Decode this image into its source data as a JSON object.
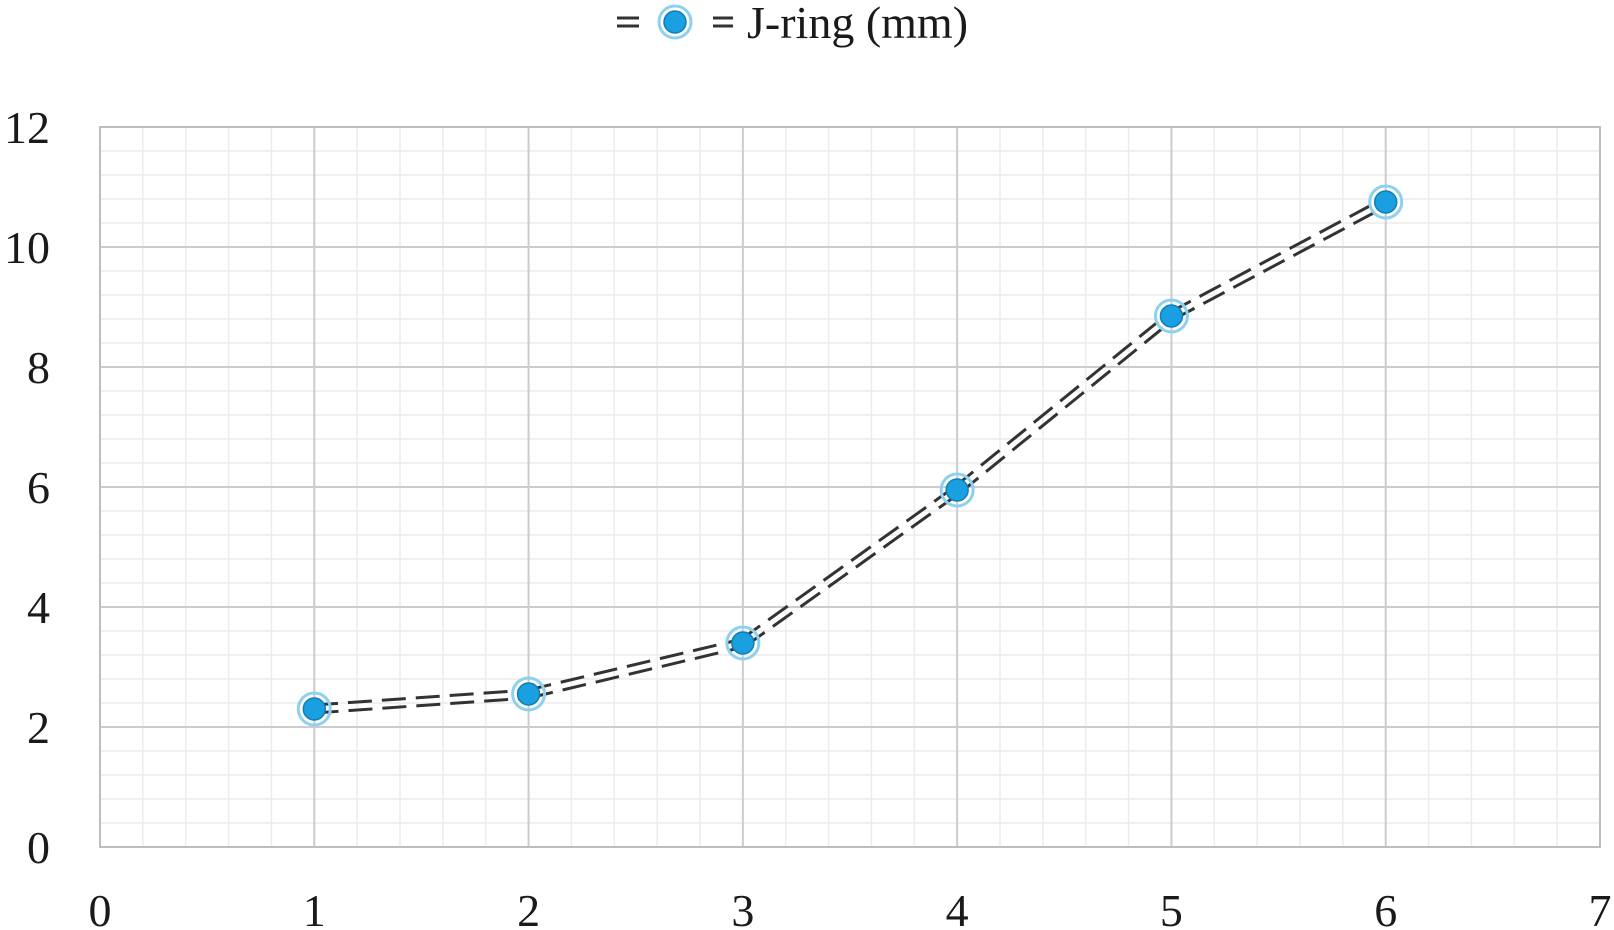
{
  "chart_data": {
    "type": "line",
    "title": "",
    "xlabel": "",
    "ylabel": "",
    "xlim": [
      0,
      7
    ],
    "ylim": [
      0,
      12
    ],
    "x_ticks": [
      "0",
      "1",
      "2",
      "3",
      "4",
      "5",
      "6",
      "7"
    ],
    "y_ticks": [
      "0",
      "2",
      "4",
      "6",
      "8",
      "10",
      "12"
    ],
    "grid": true,
    "minor_grid": true,
    "legend_position": "top-center",
    "series": [
      {
        "name": "J-ring (mm)",
        "x": [
          1,
          2,
          3,
          4,
          5,
          6
        ],
        "y": [
          2.3,
          2.55,
          3.4,
          5.95,
          8.85,
          10.75
        ],
        "line_color": "#333333",
        "line_style": "double-dashed",
        "marker_color": "#1aa0e0"
      }
    ]
  }
}
